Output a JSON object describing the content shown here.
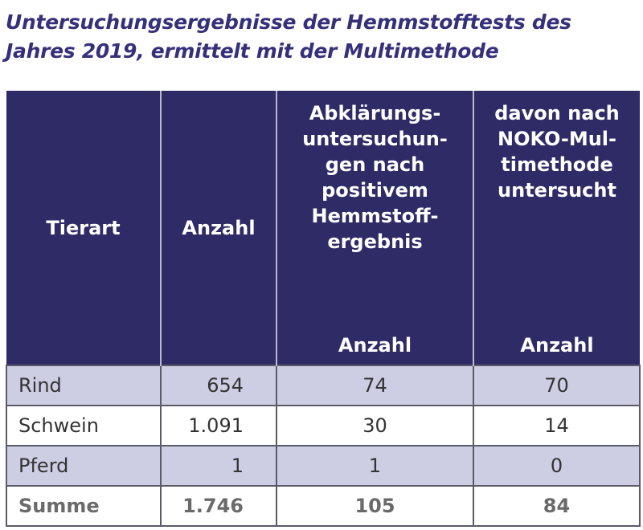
{
  "title": "Untersuchungsergebnisse der Hemmstofftests des Jahres 2019, ermittelt mit der Multimethode",
  "header": {
    "col1": "Tierart",
    "col2": "Anzahl",
    "col3": "Abklärungs-untersuchun-gen nach positivem Hemmstoff-ergebnis",
    "col3_unit": "Anzahl",
    "col4": "davon nach NOKO-Mul-timethode untersucht",
    "col4_unit": "Anzahl"
  },
  "rows": [
    {
      "tierart": "Rind",
      "anzahl": "654",
      "abklaerung": "74",
      "noko": "70"
    },
    {
      "tierart": "Schwein",
      "anzahl": "1.091",
      "abklaerung": "30",
      "noko": "14"
    },
    {
      "tierart": "Pferd",
      "anzahl": "1",
      "abklaerung": "1",
      "noko": "0"
    }
  ],
  "summe": {
    "label": "Summe",
    "anzahl": "1.746",
    "abklaerung": "105",
    "noko": "84"
  }
}
